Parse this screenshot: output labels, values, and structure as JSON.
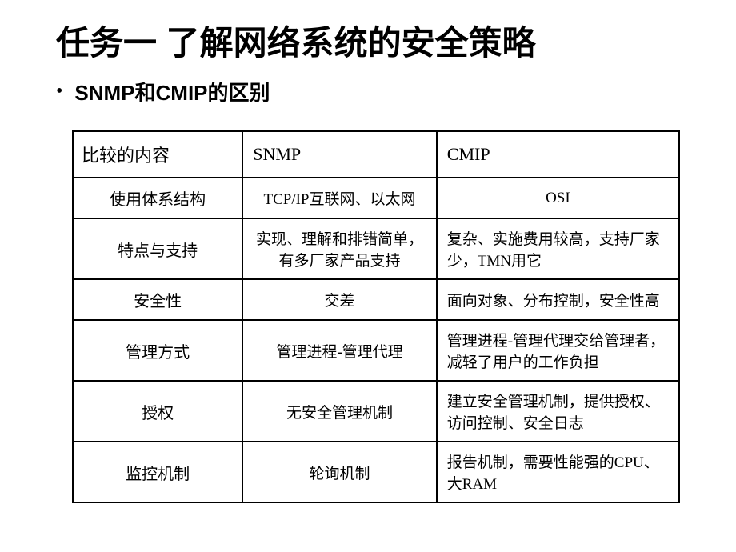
{
  "slide": {
    "title": "任务一 了解网络系统的安全策略",
    "subtitle": "SNMP和CMIP的区别",
    "bullet": "•"
  },
  "table": {
    "headers": {
      "col1": "比较的内容",
      "col2": "SNMP",
      "col3": "CMIP"
    },
    "rows": [
      {
        "col1": "使用体系结构",
        "col2": "TCP/IP互联网、以太网",
        "col3": "OSI"
      },
      {
        "col1": "特点与支持",
        "col2": "实现、理解和排错简单，有多厂家产品支持",
        "col3": "复杂、实施费用较高，支持厂家少，TMN用它"
      },
      {
        "col1": "安全性",
        "col2": "交差",
        "col3": "面向对象、分布控制，安全性高"
      },
      {
        "col1": "管理方式",
        "col2": "管理进程-管理代理",
        "col3": "管理进程-管理代理交给管理者，减轻了用户的工作负担"
      },
      {
        "col1": "授权",
        "col2": "无安全管理机制",
        "col3": "建立安全管理机制，提供授权、访问控制、安全日志"
      },
      {
        "col1": "监控机制",
        "col2": "轮询机制",
        "col3": "报告机制，需要性能强的CPU、大RAM"
      }
    ]
  },
  "styling": {
    "background_color": "#ffffff",
    "text_color": "#000000",
    "border_color": "#000000",
    "title_fontsize": 42,
    "subtitle_fontsize": 26,
    "table_header_fontsize": 22,
    "table_body_fontsize": 19,
    "border_width": 2,
    "slide_width": 920,
    "slide_height": 690
  }
}
